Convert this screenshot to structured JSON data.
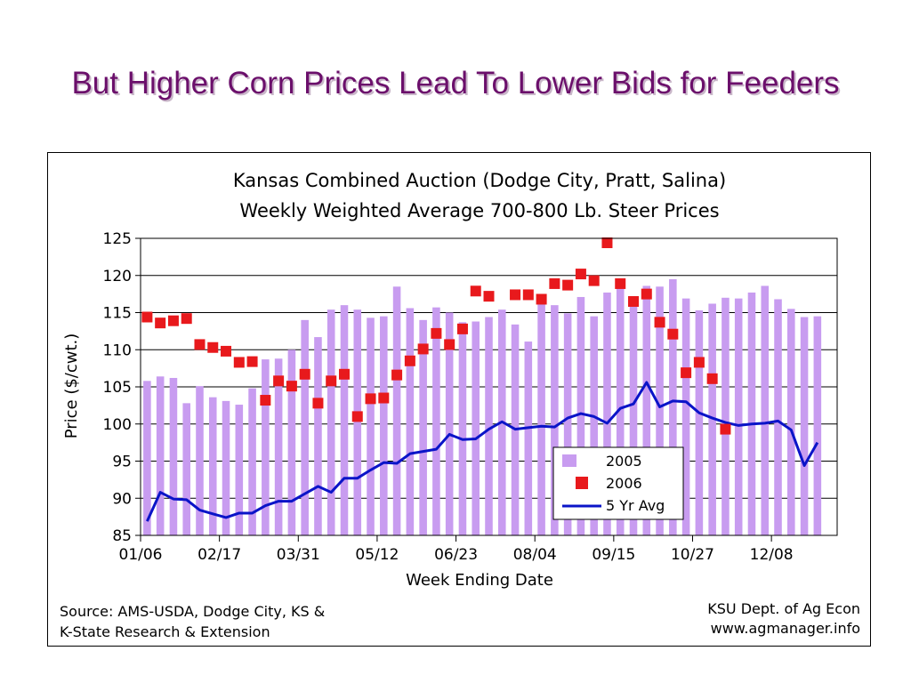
{
  "slide_title": "But Higher Corn Prices Lead To Lower Bids for Feeders",
  "source": {
    "line1": "Source:  AMS-USDA, Dodge City, KS &",
    "line2": "K-State Research & Extension"
  },
  "credit": {
    "line1": "KSU Dept. of Ag Econ",
    "line2": "www.agmanager.info"
  },
  "colors": {
    "title": "#6b0f6b",
    "bars_2005": "#c89cf0",
    "markers_2006": "#e8191c",
    "line_5yr": "#0a14c8"
  },
  "chart_data": {
    "type": "bar",
    "title": "Kansas Combined Auction (Dodge City, Pratt, Salina)",
    "subtitle": "Weekly Weighted Average 700-800 Lb. Steer Prices",
    "xlabel": "Week Ending Date",
    "ylabel": "Price ($/cwt.)",
    "ylim": [
      85,
      125
    ],
    "yticks": [
      85,
      90,
      95,
      100,
      105,
      110,
      115,
      120,
      125
    ],
    "x_tick_labels": [
      "01/06",
      "02/17",
      "03/31",
      "05/12",
      "06/23",
      "08/04",
      "09/15",
      "10/27",
      "12/08"
    ],
    "x_tick_week_index": [
      0,
      6,
      12,
      18,
      24,
      30,
      36,
      42,
      48
    ],
    "weeks": 53,
    "grid": true,
    "legend": "inside-bottom-right",
    "series": [
      {
        "name": "2005",
        "kind": "bar",
        "values": [
          105.8,
          106.4,
          106.2,
          102.8,
          105.1,
          103.6,
          103.1,
          102.6,
          104.8,
          108.7,
          108.8,
          110.0,
          114.0,
          111.7,
          115.4,
          116.0,
          115.4,
          114.3,
          114.5,
          118.5,
          115.6,
          114.0,
          115.7,
          115.0,
          113.7,
          113.8,
          114.4,
          115.4,
          113.4,
          111.1,
          116.4,
          116.0,
          114.9,
          117.1,
          114.5,
          117.7,
          118.3,
          117.0,
          118.6,
          118.5,
          119.5,
          116.9,
          115.3,
          116.2,
          117.0,
          116.9,
          117.7,
          118.6,
          116.8,
          115.5,
          114.4,
          114.5
        ]
      },
      {
        "name": "2006",
        "kind": "marker",
        "values": [
          114.4,
          113.6,
          113.9,
          114.2,
          110.7,
          110.3,
          109.8,
          108.3,
          108.4,
          103.2,
          105.8,
          105.1,
          106.7,
          102.8,
          105.8,
          106.7,
          101.0,
          103.4,
          103.5,
          106.6,
          108.5,
          110.1,
          112.2,
          110.7,
          112.8,
          117.9,
          117.2,
          null,
          117.4,
          117.4,
          116.8,
          118.9,
          118.7,
          120.2,
          119.3,
          124.4,
          118.9,
          116.5,
          117.5,
          113.7,
          112.1,
          106.9,
          108.3,
          106.1,
          99.3
        ]
      },
      {
        "name": "5 Yr Avg",
        "kind": "line",
        "values": [
          86.9,
          90.8,
          89.9,
          89.8,
          88.4,
          87.9,
          87.4,
          88.0,
          88.0,
          89.0,
          89.6,
          89.6,
          90.6,
          91.6,
          90.8,
          92.7,
          92.7,
          93.8,
          94.8,
          94.7,
          96.0,
          96.3,
          96.6,
          98.6,
          97.9,
          98.0,
          99.3,
          100.3,
          99.3,
          99.5,
          99.7,
          99.6,
          100.8,
          101.4,
          101.0,
          100.1,
          102.1,
          102.7,
          105.6,
          102.3,
          103.1,
          103.0,
          101.5,
          100.8,
          100.2,
          99.8,
          100.0,
          100.1,
          100.4,
          99.2,
          94.4,
          97.5
        ]
      }
    ]
  }
}
